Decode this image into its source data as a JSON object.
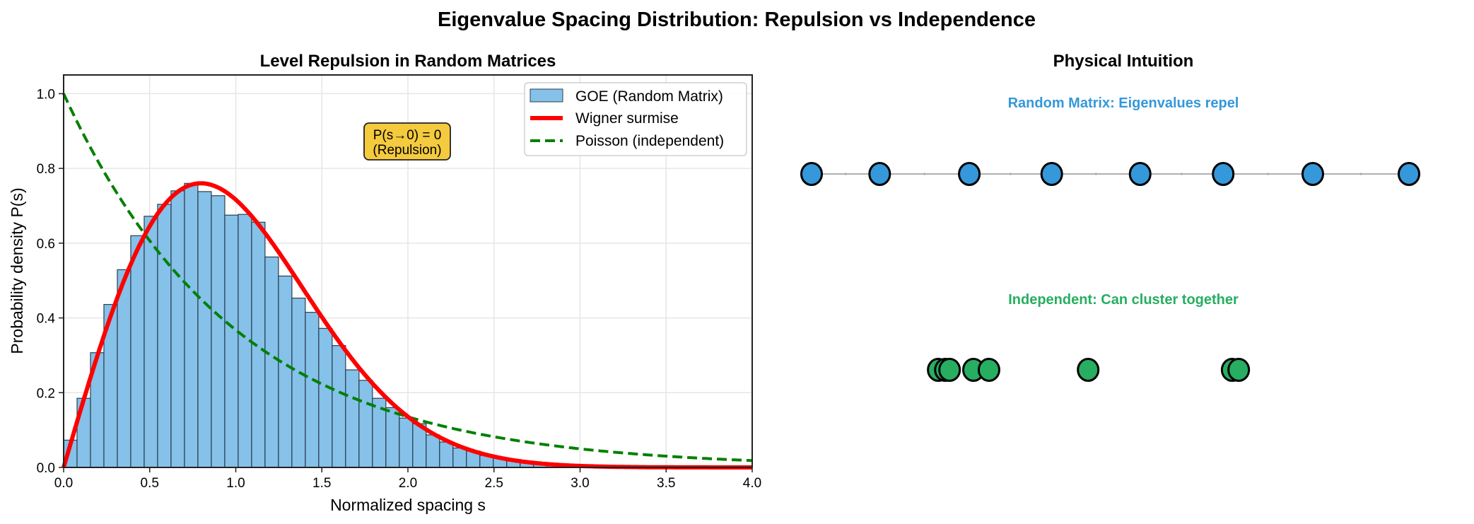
{
  "figure": {
    "suptitle": "Eigenvalue Spacing Distribution: Repulsion vs Independence"
  },
  "chart_data": [
    {
      "type": "bar",
      "title": "Level Repulsion in Random Matrices",
      "xlabel": "Normalized spacing s",
      "ylabel": "Probability density P(s)",
      "xlim": [
        0.0,
        4.0
      ],
      "ylim": [
        0.0,
        1.05
      ],
      "grid": true,
      "xticks": [
        "0.0",
        "0.5",
        "1.0",
        "1.5",
        "2.0",
        "2.5",
        "3.0",
        "3.5",
        "4.0"
      ],
      "yticks": [
        "0.0",
        "0.2",
        "0.4",
        "0.6",
        "0.8",
        "1.0"
      ],
      "legend_position": "top-right",
      "histogram": {
        "name": "GOE (Random Matrix)",
        "color": "#85C1E9",
        "edgecolor": "#2c3e50",
        "bin_start": 0.0,
        "bin_width": 0.078,
        "values": [
          0.073,
          0.185,
          0.307,
          0.436,
          0.529,
          0.62,
          0.672,
          0.704,
          0.74,
          0.76,
          0.738,
          0.727,
          0.675,
          0.677,
          0.656,
          0.563,
          0.512,
          0.453,
          0.415,
          0.372,
          0.326,
          0.261,
          0.233,
          0.185,
          0.16,
          0.132,
          0.117,
          0.087,
          0.068,
          0.052,
          0.044,
          0.032,
          0.026,
          0.021,
          0.017,
          0.012,
          0.009,
          0.006
        ]
      },
      "series": [
        {
          "name": "Wigner surmise",
          "formula": "(pi/2) s exp(-pi s^2 / 4)",
          "color": "#ff0000",
          "style": "solid"
        },
        {
          "name": "Poisson (independent)",
          "formula": "exp(-s)",
          "color": "#008000",
          "style": "dashed"
        }
      ],
      "annotation": {
        "line1": "P(s→0) = 0",
        "line2": "(Repulsion)",
        "x": 1.8,
        "y": 0.87,
        "facecolor": "#F4CA3E"
      }
    },
    {
      "type": "scatter",
      "title": "Physical Intuition",
      "xlim": [
        -0.35,
        10.5
      ],
      "groups": [
        {
          "label": "Random Matrix: Eigenvalues repel",
          "color": "#3498DB",
          "x": [
            0.0,
            1.14,
            2.64,
            4.02,
            5.5,
            6.89,
            8.39,
            10.0
          ],
          "row": 1
        },
        {
          "label": "Independent: Can cluster together",
          "color": "#27AE60",
          "x": [
            2.12,
            2.24,
            2.31,
            2.71,
            2.97,
            4.63,
            7.04,
            7.15
          ],
          "row": 0
        }
      ]
    }
  ]
}
